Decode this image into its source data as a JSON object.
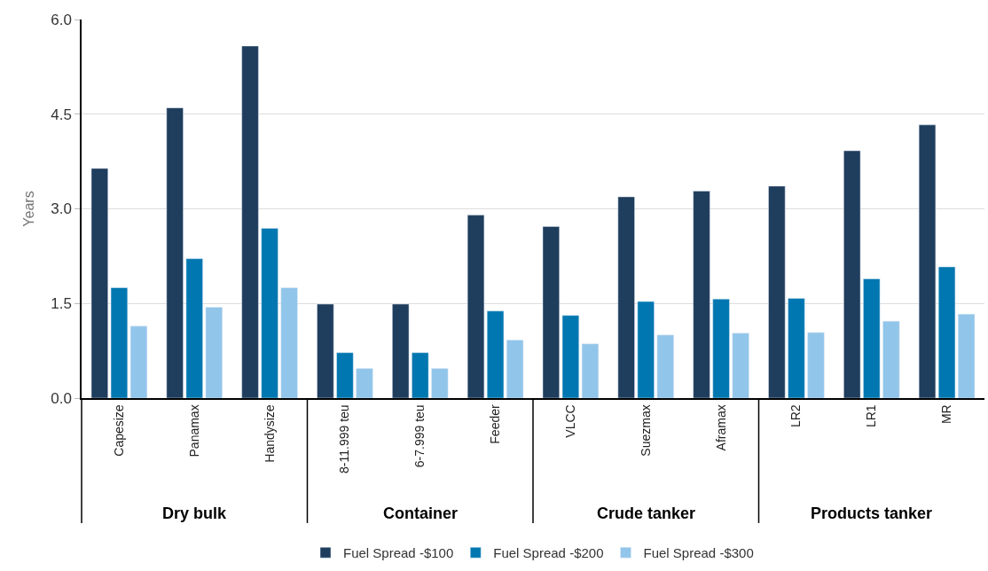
{
  "chart_data": {
    "type": "bar",
    "ylabel": "Years",
    "categories": [
      "Capesize",
      "Panamax",
      "Handysize",
      "8-11.999 teu",
      "6-7.999 teu",
      "Feeder",
      "VLCC",
      "Suezmax",
      "Aframax",
      "LR2",
      "LR1",
      "MR"
    ],
    "series": [
      {
        "name": "Fuel Spread -$100",
        "color": "#1f3d5c",
        "values": [
          3.64,
          4.6,
          5.58,
          1.49,
          1.49,
          2.9,
          2.72,
          3.19,
          3.28,
          3.36,
          3.92,
          4.33
        ]
      },
      {
        "name": "Fuel Spread -$200",
        "color": "#0077b0",
        "values": [
          1.75,
          2.21,
          2.69,
          0.72,
          0.72,
          1.38,
          1.31,
          1.53,
          1.57,
          1.58,
          1.89,
          2.08
        ]
      },
      {
        "name": "Fuel Spread -$300",
        "color": "#92c5ea",
        "values": [
          1.14,
          1.44,
          1.75,
          0.47,
          0.47,
          0.92,
          0.86,
          1.0,
          1.03,
          1.04,
          1.22,
          1.33
        ]
      }
    ],
    "ylim": [
      0,
      6
    ],
    "yticks": [
      {
        "value": 0,
        "label": "0.0"
      },
      1.5,
      {
        "value": 3,
        "label": "3.0"
      },
      4.5,
      {
        "value": 6,
        "label": "6.0"
      }
    ],
    "grid": "y",
    "legend": "bottom",
    "annotations": [
      "Dry bulk",
      "Container",
      "Crude tanker",
      "Products tanker"
    ]
  }
}
